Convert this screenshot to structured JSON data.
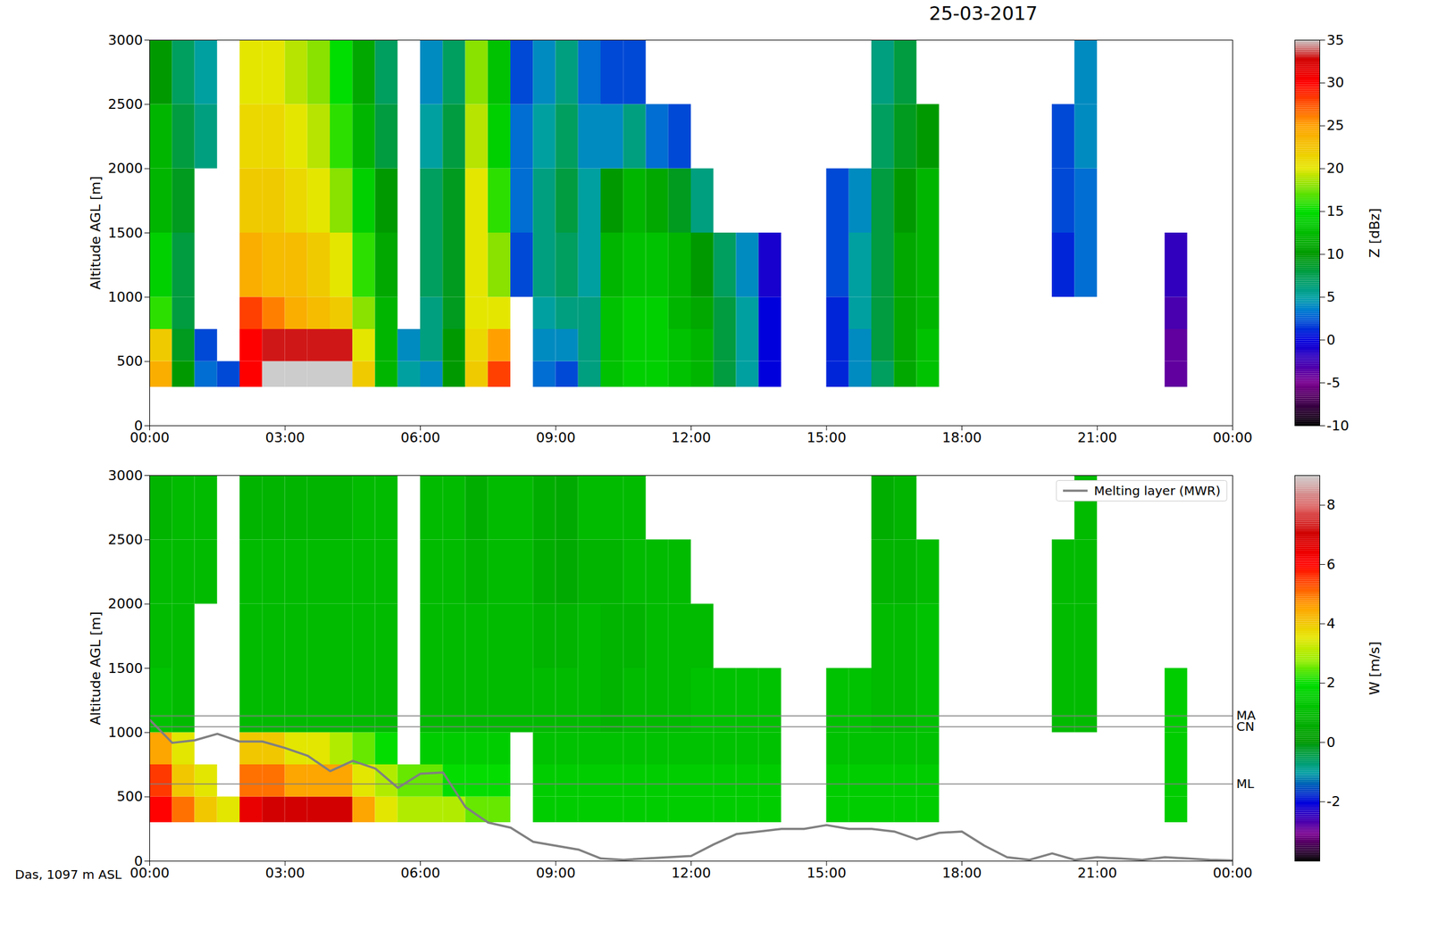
{
  "chart_data": [
    {
      "type": "heatmap",
      "title": "25-03-2017",
      "y_label": "Altitude AGL [m]",
      "xlim": [
        0,
        24
      ],
      "ylim": [
        0,
        3000
      ],
      "xticks": [
        {
          "value": 0,
          "label": "00:00"
        },
        {
          "value": 3,
          "label": "03:00"
        },
        {
          "value": 6,
          "label": "06:00"
        },
        {
          "value": 9,
          "label": "09:00"
        },
        {
          "value": 12,
          "label": "12:00"
        },
        {
          "value": 15,
          "label": "15:00"
        },
        {
          "value": 18,
          "label": "18:00"
        },
        {
          "value": 21,
          "label": "21:00"
        },
        {
          "value": 24,
          "label": "00:00"
        }
      ],
      "yticks": [
        0,
        500,
        1000,
        1500,
        2000,
        2500,
        3000
      ],
      "x_edges": [
        0,
        0.5,
        1,
        1.5,
        2,
        2.5,
        3,
        3.5,
        4,
        4.5,
        5,
        5.5,
        6,
        6.5,
        7,
        7.5,
        8,
        8.5,
        9,
        9.5,
        10,
        10.5,
        11,
        11.5,
        12,
        12.5,
        13,
        13.5,
        14,
        14.5,
        15,
        15.5,
        16,
        16.5,
        17,
        17.5,
        18,
        18.5,
        19,
        19.5,
        20,
        20.5,
        21,
        21.5,
        22,
        22.5,
        23,
        23.5,
        24
      ],
      "y_edges": [
        300,
        500,
        750,
        1000,
        1500,
        2000,
        2500,
        3000
      ],
      "cells": [
        [
          24,
          10,
          3,
          2,
          30,
          35,
          35,
          35,
          35,
          22,
          12,
          5,
          4,
          10,
          22,
          28,
          null,
          3,
          2,
          6,
          13,
          14,
          14,
          13,
          12,
          8,
          5,
          0,
          null,
          null,
          1,
          4,
          7,
          11,
          13,
          null,
          null,
          null,
          null,
          null,
          null,
          null,
          null,
          null,
          null,
          -4,
          null,
          null
        ],
        [
          22,
          9,
          2,
          null,
          30,
          33,
          33,
          33,
          33,
          20,
          12,
          4,
          6,
          10,
          21,
          25,
          null,
          4,
          4,
          6,
          13,
          14,
          14,
          13,
          12,
          8,
          5,
          0,
          null,
          null,
          1,
          4,
          8,
          11,
          13,
          null,
          null,
          null,
          null,
          null,
          null,
          null,
          null,
          null,
          null,
          -4,
          null,
          null
        ],
        [
          16,
          8,
          null,
          null,
          28,
          26,
          24,
          23,
          22,
          18,
          12,
          null,
          6,
          9,
          20,
          20,
          null,
          5,
          6,
          6,
          13,
          14,
          14,
          12,
          11,
          8,
          5,
          0,
          null,
          null,
          1,
          5,
          8,
          11,
          12,
          null,
          null,
          null,
          null,
          null,
          null,
          null,
          null,
          null,
          null,
          -3,
          null,
          null
        ],
        [
          14,
          8,
          null,
          null,
          24,
          23,
          23,
          22,
          20,
          16,
          11,
          null,
          7,
          9,
          20,
          18,
          2,
          6,
          7,
          5,
          12,
          13,
          13,
          12,
          10,
          7,
          4,
          -1,
          null,
          null,
          2,
          5,
          8,
          11,
          12,
          null,
          null,
          null,
          null,
          null,
          1,
          3,
          null,
          null,
          null,
          -2,
          null,
          null
        ],
        [
          12,
          9,
          null,
          null,
          22,
          22,
          21,
          20,
          18,
          14,
          10,
          null,
          7,
          9,
          20,
          16,
          3,
          6,
          8,
          5,
          10,
          12,
          11,
          9,
          6,
          null,
          null,
          null,
          null,
          null,
          2,
          4,
          8,
          10,
          12,
          null,
          null,
          null,
          null,
          null,
          2,
          3,
          null,
          null,
          null,
          null,
          null,
          null
        ],
        [
          12,
          8,
          6,
          null,
          21,
          21,
          20,
          19,
          16,
          12,
          8,
          null,
          5,
          8,
          19,
          14,
          3,
          5,
          7,
          4,
          4,
          6,
          3,
          2,
          null,
          null,
          null,
          null,
          null,
          null,
          null,
          null,
          7,
          9,
          10,
          null,
          null,
          null,
          null,
          null,
          2,
          4,
          null,
          null,
          null,
          null,
          null,
          null
        ],
        [
          10,
          7,
          5,
          null,
          20,
          20,
          19,
          18,
          15,
          11,
          7,
          null,
          4,
          7,
          18,
          13,
          2,
          4,
          6,
          3,
          2,
          2,
          null,
          null,
          null,
          null,
          null,
          null,
          null,
          null,
          null,
          null,
          6,
          8,
          null,
          null,
          null,
          null,
          null,
          null,
          null,
          4,
          null,
          null,
          null,
          null,
          null,
          null
        ]
      ],
      "colorbar": {
        "label": "Z [dBz]",
        "range": [
          -10,
          35
        ],
        "ticks": [
          -10,
          -5,
          0,
          5,
          10,
          15,
          20,
          25,
          30,
          35
        ]
      }
    },
    {
      "type": "heatmap",
      "y_label": "Altitude AGL [m]",
      "xlim": [
        0,
        24
      ],
      "ylim": [
        0,
        3000
      ],
      "xticks": [
        {
          "value": 0,
          "label": "00:00"
        },
        {
          "value": 3,
          "label": "03:00"
        },
        {
          "value": 6,
          "label": "06:00"
        },
        {
          "value": 9,
          "label": "09:00"
        },
        {
          "value": 12,
          "label": "12:00"
        },
        {
          "value": 15,
          "label": "15:00"
        },
        {
          "value": 18,
          "label": "18:00"
        },
        {
          "value": 21,
          "label": "21:00"
        },
        {
          "value": 24,
          "label": "00:00"
        }
      ],
      "yticks": [
        0,
        500,
        1000,
        1500,
        2000,
        2500,
        3000
      ],
      "x_edges": [
        0,
        0.5,
        1,
        1.5,
        2,
        2.5,
        3,
        3.5,
        4,
        4.5,
        5,
        5.5,
        6,
        6.5,
        7,
        7.5,
        8,
        8.5,
        9,
        9.5,
        10,
        10.5,
        11,
        11.5,
        12,
        12.5,
        13,
        13.5,
        14,
        14.5,
        15,
        15.5,
        16,
        16.5,
        17,
        17.5,
        18,
        18.5,
        19,
        19.5,
        20,
        20.5,
        21,
        21.5,
        22,
        22.5,
        23,
        23.5,
        24
      ],
      "y_edges": [
        300,
        500,
        750,
        1000,
        1500,
        2000,
        2500,
        3000
      ],
      "cells": [
        [
          6,
          5,
          4,
          3.5,
          6.5,
          7,
          7,
          7,
          7,
          4.5,
          3.5,
          3,
          3,
          3,
          2.5,
          2.5,
          null,
          1.5,
          1.5,
          1.5,
          1.5,
          1.5,
          1.5,
          1.5,
          1.5,
          1.5,
          1.5,
          1.5,
          null,
          null,
          1.5,
          1.5,
          1.5,
          1.5,
          1.5,
          null,
          null,
          null,
          null,
          null,
          null,
          null,
          null,
          null,
          null,
          1.5,
          null,
          null
        ],
        [
          5.5,
          4,
          3.5,
          null,
          5,
          5,
          4.5,
          4.5,
          4.5,
          3.5,
          3,
          2.5,
          2.5,
          2,
          2,
          2,
          null,
          1.5,
          1.5,
          1.5,
          1.5,
          1.5,
          1.5,
          1.5,
          1.5,
          1.5,
          1.5,
          1.5,
          null,
          null,
          1.5,
          1.5,
          1.5,
          1.5,
          1.5,
          null,
          null,
          null,
          null,
          null,
          null,
          null,
          null,
          null,
          null,
          1.5,
          null,
          null
        ],
        [
          4.5,
          3.5,
          null,
          null,
          4,
          4,
          3.5,
          3.5,
          3,
          2.5,
          2,
          null,
          1.5,
          1.5,
          1.5,
          1.5,
          null,
          1.2,
          1.2,
          1.2,
          1.2,
          1.2,
          1.2,
          1.2,
          1.2,
          1.2,
          1.2,
          1.2,
          null,
          null,
          1.2,
          1.2,
          1.2,
          1.2,
          1.2,
          null,
          null,
          null,
          null,
          null,
          null,
          null,
          null,
          null,
          null,
          1.5,
          null,
          null
        ],
        [
          1.2,
          1,
          null,
          null,
          1,
          1,
          1,
          1,
          1,
          1,
          1,
          null,
          1,
          1,
          1,
          1,
          1,
          1,
          1,
          1,
          0.8,
          1,
          1,
          1,
          1.2,
          1.2,
          1.2,
          1.2,
          null,
          null,
          1.2,
          1.2,
          1,
          1,
          1.2,
          null,
          null,
          null,
          null,
          null,
          1,
          1,
          null,
          null,
          null,
          1.5,
          null,
          null
        ],
        [
          1,
          1,
          null,
          null,
          1,
          1,
          1,
          1,
          1,
          1,
          1,
          null,
          1,
          1,
          1,
          1,
          1,
          0.8,
          0.8,
          1,
          0.8,
          0.8,
          1,
          1,
          1,
          null,
          null,
          null,
          null,
          null,
          null,
          null,
          1,
          1,
          1.2,
          null,
          null,
          null,
          null,
          null,
          1,
          1,
          null,
          null,
          null,
          null,
          null,
          null
        ],
        [
          1,
          1,
          1,
          null,
          1,
          1,
          1,
          1,
          1,
          1,
          1,
          null,
          1,
          1,
          0.8,
          1,
          1,
          0.6,
          0.5,
          0.8,
          0.8,
          1,
          1,
          1,
          null,
          null,
          null,
          null,
          null,
          null,
          null,
          null,
          0.8,
          0.8,
          1,
          null,
          null,
          null,
          null,
          null,
          1,
          1,
          null,
          null,
          null,
          null,
          null,
          null
        ],
        [
          0.8,
          1,
          1,
          null,
          0.8,
          0.8,
          0.8,
          0.8,
          0.8,
          1,
          1,
          null,
          1,
          1,
          0.6,
          1,
          1,
          0.6,
          0.5,
          1,
          1,
          1,
          null,
          null,
          null,
          null,
          null,
          null,
          null,
          null,
          null,
          null,
          0.6,
          0.8,
          null,
          null,
          null,
          null,
          null,
          null,
          null,
          1,
          null,
          null,
          null,
          null,
          null,
          null
        ]
      ],
      "colorbar": {
        "label": "W [m/s]",
        "range": [
          -4,
          9
        ],
        "ticks": [
          -2,
          0,
          2,
          4,
          6,
          8
        ]
      },
      "series": [
        {
          "name": "Melting layer (MWR)",
          "color": "#808080",
          "type": "line",
          "x": [
            0,
            0.5,
            1,
            1.5,
            2,
            2.5,
            3,
            3.5,
            4,
            4.5,
            5,
            5.5,
            6,
            6.5,
            7,
            7.5,
            8,
            8.5,
            9,
            9.5,
            10,
            10.5,
            11,
            11.5,
            12,
            12.5,
            13,
            13.5,
            14,
            14.5,
            15,
            15.5,
            16,
            16.5,
            17,
            17.5,
            18,
            18.5,
            19,
            19.5,
            20,
            20.5,
            21,
            21.5,
            22,
            22.5,
            23,
            23.5,
            24
          ],
          "values": [
            1100,
            920,
            940,
            990,
            930,
            930,
            880,
            820,
            700,
            780,
            720,
            570,
            680,
            690,
            420,
            300,
            260,
            150,
            120,
            90,
            20,
            10,
            20,
            30,
            40,
            130,
            210,
            230,
            250,
            250,
            280,
            250,
            250,
            230,
            170,
            220,
            230,
            120,
            30,
            10,
            60,
            10,
            30,
            20,
            10,
            30,
            20,
            10,
            5
          ]
        }
      ],
      "reference_lines": [
        {
          "label": "MA",
          "value": 1130
        },
        {
          "label": "CN",
          "value": 1045
        },
        {
          "label": "ML",
          "value": 600
        }
      ],
      "annotation": "Das, 1097 m ASL",
      "legend": "upper right"
    }
  ]
}
